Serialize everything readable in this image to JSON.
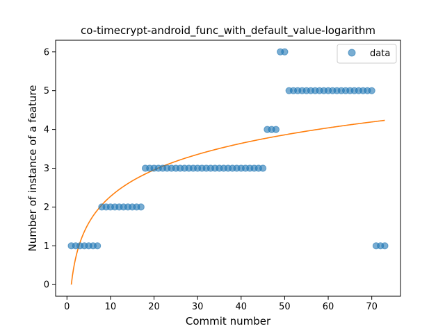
{
  "chart_data": {
    "type": "scatter",
    "title": "co-timecrypt-android_func_with_default_value-logarithm",
    "xlabel": "Commit number",
    "ylabel": "Number of instance of a feature",
    "xlim": [
      -2.6,
      76.6
    ],
    "ylim": [
      -0.3,
      6.3
    ],
    "xticks": [
      0,
      10,
      20,
      30,
      40,
      50,
      60,
      70
    ],
    "yticks": [
      0,
      1,
      2,
      3,
      4,
      5,
      6
    ],
    "grid": false,
    "legend_position": "top-right",
    "colors": {
      "data": "#1f77b4",
      "fit": "#ff7f0e"
    },
    "series": [
      {
        "name": "data",
        "kind": "scatter",
        "x": [
          1,
          2,
          3,
          4,
          5,
          6,
          7,
          8,
          9,
          10,
          11,
          12,
          13,
          14,
          15,
          16,
          17,
          18,
          19,
          20,
          21,
          22,
          23,
          24,
          25,
          26,
          27,
          28,
          29,
          30,
          31,
          32,
          33,
          34,
          35,
          36,
          37,
          38,
          39,
          40,
          41,
          42,
          43,
          44,
          45,
          46,
          47,
          48,
          49,
          50,
          51,
          52,
          53,
          54,
          55,
          56,
          57,
          58,
          59,
          60,
          61,
          62,
          63,
          64,
          65,
          66,
          67,
          68,
          69,
          70,
          71,
          72,
          73
        ],
        "y": [
          1,
          1,
          1,
          1,
          1,
          1,
          1,
          2,
          2,
          2,
          2,
          2,
          2,
          2,
          2,
          2,
          2,
          3,
          3,
          3,
          3,
          3,
          3,
          3,
          3,
          3,
          3,
          3,
          3,
          3,
          3,
          3,
          3,
          3,
          3,
          3,
          3,
          3,
          3,
          3,
          3,
          3,
          3,
          3,
          3,
          4,
          4,
          4,
          6,
          6,
          5,
          5,
          5,
          5,
          5,
          5,
          5,
          5,
          5,
          5,
          5,
          5,
          5,
          5,
          5,
          5,
          5,
          5,
          5,
          5,
          1,
          1,
          1
        ]
      },
      {
        "kind": "line",
        "model": "logarithmic fit",
        "a": 0.0,
        "b": 0.987,
        "x_range": [
          1,
          73
        ]
      }
    ]
  }
}
